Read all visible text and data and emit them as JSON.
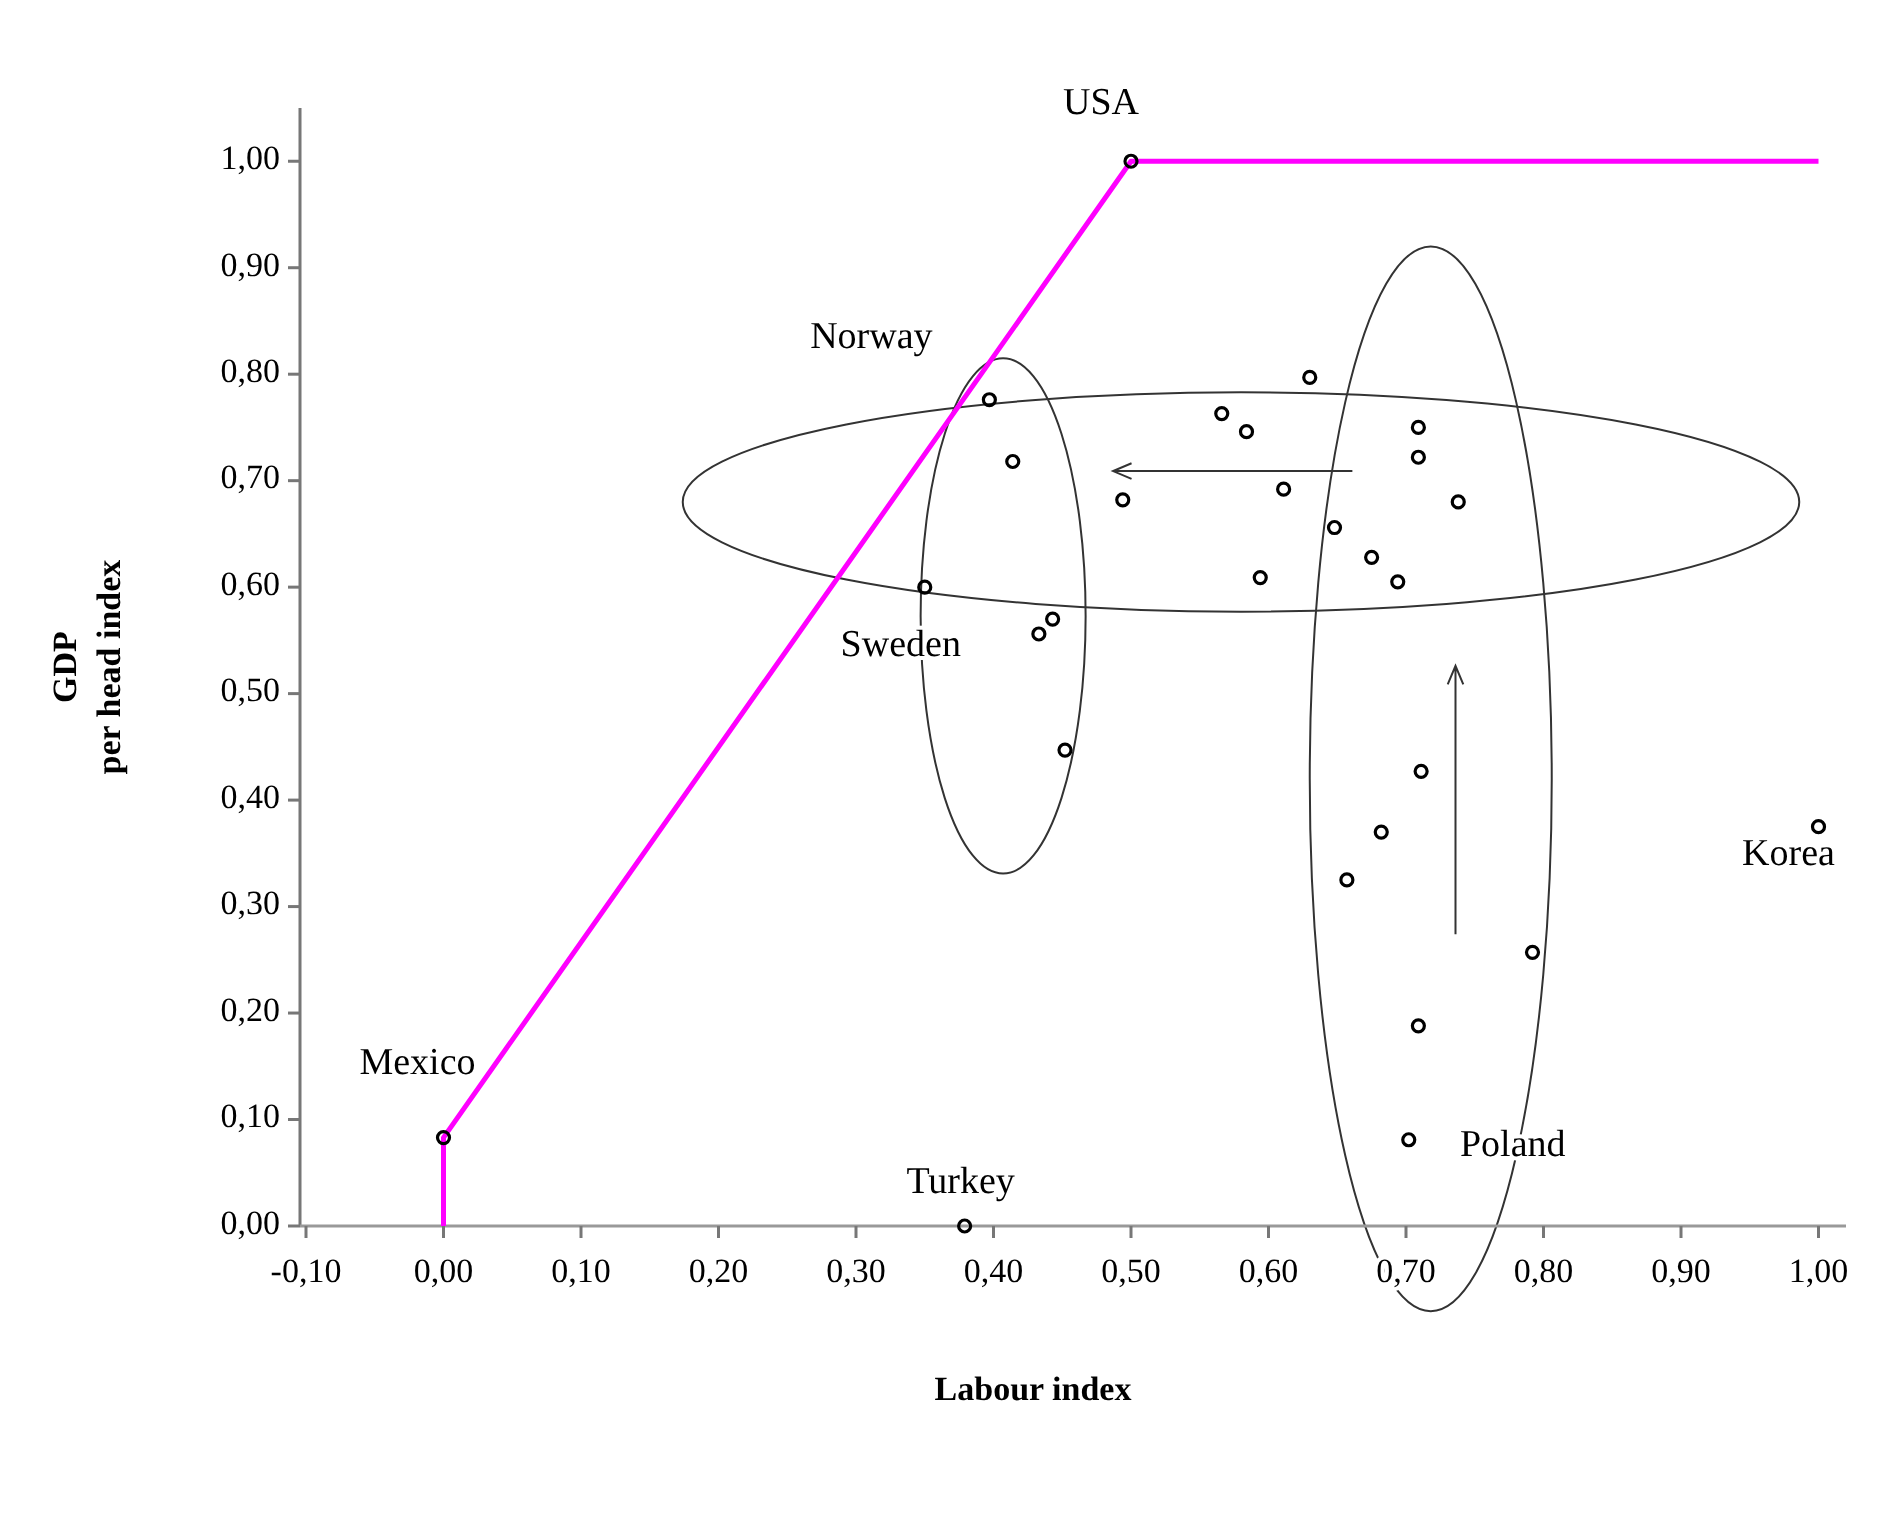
{
  "chart_data": {
    "type": "scatter",
    "xlabel": "Labour index",
    "ylabel": "GDP\nper head index",
    "xlim": [
      -0.1,
      1.02
    ],
    "ylim": [
      0,
      1.05
    ],
    "xticks": [
      {
        "value": -0.1,
        "label": "-0,10"
      },
      {
        "value": 0,
        "label": "0,00"
      },
      {
        "value": 0.1,
        "label": "0,10"
      },
      {
        "value": 0.2,
        "label": "0,20"
      },
      {
        "value": 0.3,
        "label": "0,30"
      },
      {
        "value": 0.4,
        "label": "0,40"
      },
      {
        "value": 0.5,
        "label": "0,50"
      },
      {
        "value": 0.6,
        "label": "0,60"
      },
      {
        "value": 0.7,
        "label": "0,70"
      },
      {
        "value": 0.8,
        "label": "0,80"
      },
      {
        "value": 0.9,
        "label": "0,90"
      },
      {
        "value": 1.0,
        "label": "1,00"
      }
    ],
    "yticks": [
      {
        "value": 0,
        "label": "0,00"
      },
      {
        "value": 0.1,
        "label": "0,10"
      },
      {
        "value": 0.2,
        "label": "0,20"
      },
      {
        "value": 0.3,
        "label": "0,30"
      },
      {
        "value": 0.4,
        "label": "0,40"
      },
      {
        "value": 0.5,
        "label": "0,50"
      },
      {
        "value": 0.6,
        "label": "0,60"
      },
      {
        "value": 0.7,
        "label": "0,70"
      },
      {
        "value": 0.8,
        "label": "0,80"
      },
      {
        "value": 0.9,
        "label": "0,90"
      },
      {
        "value": 1.0,
        "label": "1,00"
      }
    ],
    "grid": false,
    "series": [
      {
        "type": "line",
        "color": "#ff00ff",
        "marker": "none",
        "line_style": "solid",
        "x": [
          0,
          0,
          0.5,
          1.0
        ],
        "values": [
          0,
          0.083,
          1.0,
          1.0
        ]
      },
      {
        "color": "#000000",
        "marker": "circle",
        "x": [
          0,
          0.5,
          0.397,
          0.414,
          0.35,
          0.433,
          0.443,
          0.452,
          0.63,
          0.566,
          0.584,
          0.709,
          0.709,
          0.494,
          0.611,
          0.738,
          0.648,
          0.675,
          0.694,
          0.594,
          0.711,
          0.682,
          0.657,
          0.792,
          0.709,
          0.702,
          0.379,
          1.0
        ],
        "values": [
          0.083,
          1.0,
          0.776,
          0.718,
          0.6,
          0.556,
          0.57,
          0.447,
          0.797,
          0.763,
          0.746,
          0.75,
          0.722,
          0.682,
          0.692,
          0.68,
          0.656,
          0.628,
          0.605,
          0.609,
          0.427,
          0.37,
          0.325,
          0.257,
          0.188,
          0.081,
          0,
          0.375
        ]
      }
    ],
    "annotations": [
      {
        "text": "USA",
        "x": 0.5,
        "y": 1.0
      },
      {
        "text": "Norway",
        "x": 0.397,
        "y": 0.776
      },
      {
        "text": "Sweden",
        "x": 0.35,
        "y": 0.6
      },
      {
        "text": "Mexico",
        "x": 0,
        "y": 0.083
      },
      {
        "text": "Turkey",
        "x": 0.379,
        "y": 0
      },
      {
        "text": "Poland",
        "x": 0.702,
        "y": 0.081
      },
      {
        "text": "Korea",
        "x": 1.0,
        "y": 0.375
      }
    ]
  }
}
